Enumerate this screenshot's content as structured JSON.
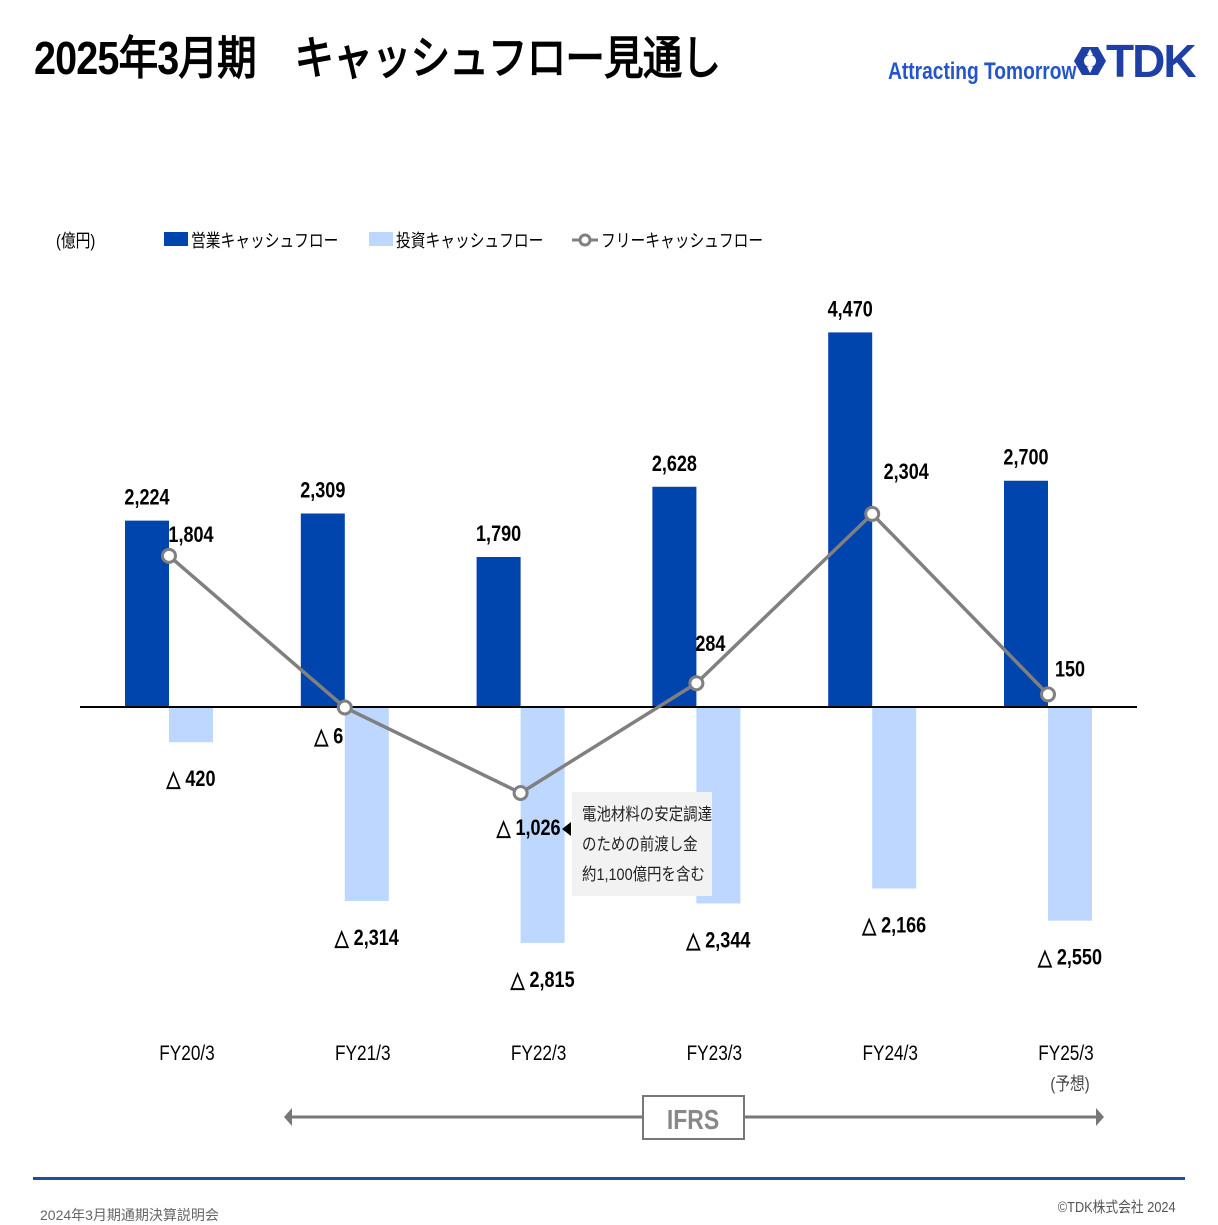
{
  "header": {
    "title": "2025年3月期　キャッシュフロー見通し",
    "tagline": "Attracting Tomorrow",
    "logo_text": "TDK"
  },
  "footer": {
    "left": "2024年3月期通期決算説明会",
    "right": "©TDK株式会社 2024"
  },
  "colors": {
    "operating": "#0044ad",
    "investing": "#bdd7ff",
    "free": "#808080",
    "ifrs": "#777777"
  },
  "chart_data": {
    "type": "bar",
    "unit_label": "(億円)",
    "categories": [
      "FY20/3",
      "FY21/3",
      "FY22/3",
      "FY23/3",
      "FY24/3",
      "FY25/3"
    ],
    "category_notes": [
      "",
      "",
      "",
      "",
      "",
      "(予想)"
    ],
    "series": [
      {
        "name": "営業キャッシュフロー",
        "kind": "bar",
        "values": [
          2224,
          2309,
          1790,
          2628,
          4470,
          2700
        ],
        "labels": [
          "2,224",
          "2,309",
          "1,790",
          "2,628",
          "4,470",
          "2,700"
        ]
      },
      {
        "name": "投資キャッシュフロー",
        "kind": "bar",
        "values": [
          -420,
          -2314,
          -2815,
          -2344,
          -2166,
          -2550
        ],
        "labels": [
          "△ 420",
          "△ 2,314",
          "△ 2,815",
          "△ 2,344",
          "△ 2,166",
          "△ 2,550"
        ]
      },
      {
        "name": "フリーキャッシュフロー",
        "kind": "line",
        "values": [
          1804,
          -6,
          -1026,
          284,
          2304,
          150
        ],
        "labels": [
          "1,804",
          "△ 6",
          "△ 1,026",
          "284",
          "2,304",
          "150"
        ]
      }
    ],
    "legend_position": "top",
    "annotation": [
      "電池材料の安定調達",
      "のための前渡し金",
      "約1,100億円を含む"
    ],
    "span_label": "IFRS"
  }
}
